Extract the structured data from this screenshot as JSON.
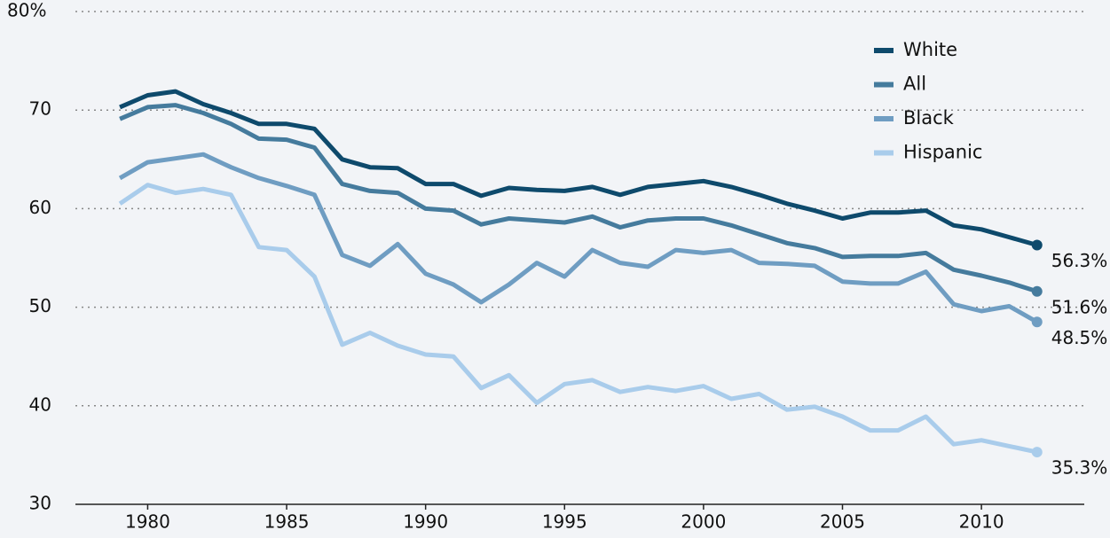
{
  "chart_data": {
    "type": "line",
    "x": [
      1979,
      1980,
      1981,
      1982,
      1983,
      1984,
      1985,
      1986,
      1987,
      1988,
      1989,
      1990,
      1991,
      1992,
      1993,
      1994,
      1995,
      1996,
      1997,
      1998,
      1999,
      2000,
      2001,
      2002,
      2003,
      2004,
      2005,
      2006,
      2007,
      2008,
      2009,
      2010,
      2011,
      2012
    ],
    "xlim": [
      1977.4,
      2013.7
    ],
    "xticks": [
      1980,
      1985,
      1990,
      1995,
      2000,
      2005,
      2010
    ],
    "ylim": [
      30,
      80
    ],
    "yticks": [
      30,
      40,
      50,
      60,
      70,
      {
        "value": 80,
        "label": "80%"
      }
    ],
    "grid": true,
    "legend": "top-right",
    "series": [
      {
        "name": "White",
        "color": "#0e4a6c",
        "values": [
          70.3,
          71.5,
          71.9,
          70.6,
          69.7,
          68.6,
          68.6,
          68.1,
          65.0,
          64.2,
          64.1,
          62.5,
          62.5,
          61.3,
          62.1,
          61.9,
          61.8,
          62.2,
          61.4,
          62.2,
          62.5,
          62.8,
          62.2,
          61.4,
          60.5,
          59.8,
          59.0,
          59.6,
          59.6,
          59.8,
          58.3,
          57.9,
          57.1,
          56.3
        ],
        "value_labels": [
          null,
          null,
          null,
          null,
          null,
          null,
          null,
          null,
          null,
          null,
          null,
          null,
          null,
          null,
          null,
          null,
          null,
          null,
          null,
          null,
          null,
          null,
          null,
          null,
          null,
          null,
          null,
          null,
          null,
          null,
          null,
          null,
          null,
          "56.3%"
        ]
      },
      {
        "name": "All",
        "color": "#457b9d",
        "values": [
          69.1,
          70.3,
          70.5,
          69.7,
          68.6,
          67.1,
          67.0,
          66.2,
          62.5,
          61.8,
          61.6,
          60.0,
          59.8,
          58.4,
          59.0,
          58.8,
          58.6,
          59.2,
          58.1,
          58.8,
          59.0,
          59.0,
          58.3,
          57.4,
          56.5,
          56.0,
          55.1,
          55.2,
          55.2,
          55.5,
          53.8,
          53.2,
          52.5,
          51.6
        ],
        "value_labels": [
          null,
          null,
          null,
          null,
          null,
          null,
          null,
          null,
          null,
          null,
          null,
          null,
          null,
          null,
          null,
          null,
          null,
          null,
          null,
          null,
          null,
          null,
          null,
          null,
          null,
          null,
          null,
          null,
          null,
          null,
          null,
          null,
          null,
          "51.6%"
        ]
      },
      {
        "name": "Black",
        "color": "#6f9dc2",
        "values": [
          63.1,
          64.7,
          65.1,
          65.5,
          64.2,
          63.1,
          62.3,
          61.4,
          55.3,
          54.2,
          56.4,
          53.4,
          52.3,
          50.5,
          52.3,
          54.5,
          53.1,
          55.8,
          54.5,
          54.1,
          55.8,
          55.5,
          55.8,
          54.5,
          54.4,
          54.2,
          52.6,
          52.4,
          52.4,
          53.6,
          50.3,
          49.6,
          50.1,
          48.5
        ],
        "value_labels": [
          null,
          null,
          null,
          null,
          null,
          null,
          null,
          null,
          null,
          null,
          null,
          null,
          null,
          null,
          null,
          null,
          null,
          null,
          null,
          null,
          null,
          null,
          null,
          null,
          null,
          null,
          null,
          null,
          null,
          null,
          null,
          null,
          null,
          "48.5%"
        ]
      },
      {
        "name": "Hispanic",
        "color": "#a9cceb",
        "values": [
          60.5,
          62.4,
          61.6,
          62.0,
          61.4,
          56.1,
          55.8,
          53.1,
          46.2,
          47.4,
          46.1,
          45.2,
          45.0,
          41.8,
          43.1,
          40.3,
          42.2,
          42.6,
          41.4,
          41.9,
          41.5,
          42.0,
          40.7,
          41.2,
          39.6,
          39.9,
          38.9,
          37.5,
          37.5,
          38.9,
          36.1,
          36.5,
          35.9,
          35.3
        ],
        "value_labels": [
          null,
          null,
          null,
          null,
          null,
          null,
          null,
          null,
          null,
          null,
          null,
          null,
          null,
          null,
          null,
          null,
          null,
          null,
          null,
          null,
          null,
          null,
          null,
          null,
          null,
          null,
          null,
          null,
          null,
          null,
          null,
          null,
          null,
          "35.3%"
        ]
      }
    ]
  }
}
